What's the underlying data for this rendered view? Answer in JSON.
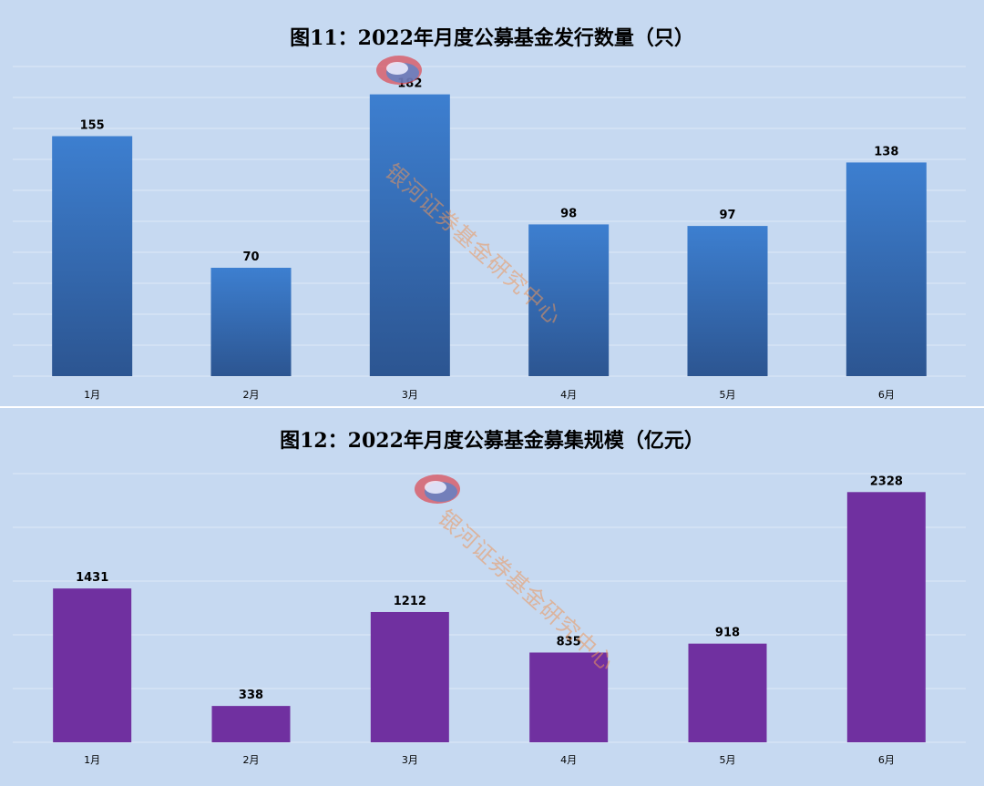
{
  "colors": {
    "panel_bg": "#c6d9f1",
    "grid": "#dfe9f7",
    "bar_blue_top": "#3d7fd0",
    "bar_blue_bottom": "#2c5591",
    "bar_purple": "#7030a0",
    "watermark": "#ec965a"
  },
  "watermark": {
    "text": "银河证券基金研究中心",
    "icon": "galaxy-logo-icon"
  },
  "chart_data": [
    {
      "type": "bar",
      "title": "图11：2022年月度公募基金发行数量（只）",
      "categories": [
        "1月",
        "2月",
        "3月",
        "4月",
        "5月",
        "6月"
      ],
      "values": [
        155,
        70,
        182,
        98,
        97,
        138
      ],
      "ylim": [
        0,
        200
      ],
      "grid": true,
      "legend": "none"
    },
    {
      "type": "bar",
      "title": "图12：2022年月度公募基金募集规模（亿元）",
      "categories": [
        "1月",
        "2月",
        "3月",
        "4月",
        "5月",
        "6月"
      ],
      "values": [
        1431,
        338,
        1212,
        835,
        918,
        2328
      ],
      "ylim": [
        0,
        2500
      ],
      "grid": true,
      "legend": "none"
    }
  ]
}
